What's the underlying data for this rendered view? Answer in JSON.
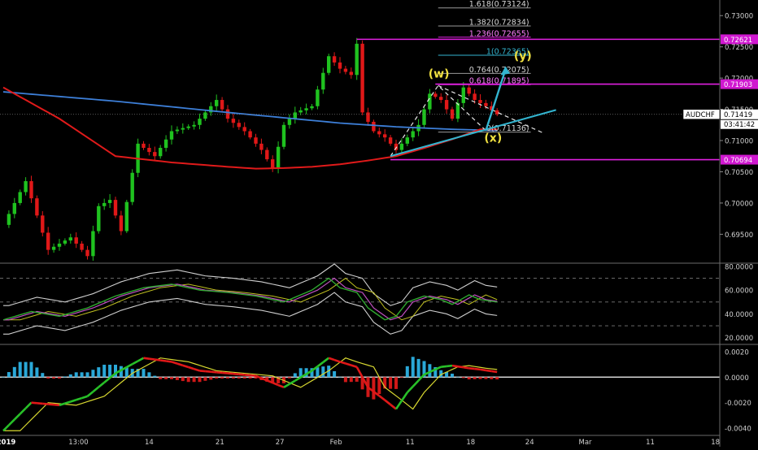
{
  "symbol": "AUDCHF",
  "colors": {
    "background": "#000000",
    "bull": "#1fc21f",
    "bear": "#e01818",
    "ma_slow": "#e01a1a",
    "ma_blue": "#3d7fd8",
    "fib_magenta": "#e020e0",
    "cyan": "#33b5d0",
    "wave_label": "#f0e040",
    "rsi": "#2fa82f",
    "rsi_signal": "#c050c0",
    "rsi_basis": "#c0c020",
    "bands": "#cfcfcf",
    "macd_line": "#28c028",
    "macd_signal": "#d8d830",
    "hist_pos": "#2aa8d8",
    "hist_neg": "#d01818"
  },
  "price_axis": {
    "ticks": [
      "0.73000",
      "0.72500",
      "0.72000",
      "0.71500",
      "0.71000",
      "0.70500",
      "0.70000",
      "0.69500"
    ],
    "tick_values": [
      0.73,
      0.725,
      0.72,
      0.715,
      0.71,
      0.705,
      0.7,
      0.695
    ],
    "last_price": "0.71419",
    "countdown": "03:41:42",
    "tags": [
      {
        "label": "0.72621",
        "value": 0.72621
      },
      {
        "label": "0.71903",
        "value": 0.71903
      },
      {
        "label": "0.70694",
        "value": 0.70694
      }
    ]
  },
  "fib_levels": [
    {
      "label": "1.618(0.73124)",
      "value": 0.73124
    },
    {
      "label": "1.382(0.72834)",
      "value": 0.72834
    },
    {
      "label": "1.236(0.72655)",
      "value": 0.72655
    },
    {
      "label": "1(0.72365)",
      "value": 0.72365
    },
    {
      "label": "0.764(0.72075)",
      "value": 0.72075
    },
    {
      "label": "0.618(0.71895)",
      "value": 0.71895
    },
    {
      "label": "0(0.71136)",
      "value": 0.71136
    }
  ],
  "wave_labels": {
    "w": "(w)",
    "x": "(x)",
    "y": "(y)"
  },
  "time_axis": {
    "labels": [
      "2019",
      "13:00",
      "14",
      "21",
      "27",
      "Feb",
      "11",
      "18",
      "24",
      "Mar",
      "11",
      "18"
    ],
    "x": [
      0.5,
      13.4,
      26,
      38.6,
      49.3,
      59.3,
      72.5,
      83.3,
      93.8,
      103.7,
      115.3,
      126.9
    ]
  },
  "rsi_axis": {
    "ticks": [
      "80.0000",
      "60.0000",
      "40.0000",
      "20.0000"
    ],
    "tick_values": [
      80,
      60,
      40,
      20
    ]
  },
  "macd_axis": {
    "ticks": [
      "0.0020",
      "0.0000",
      "-0.0020",
      "-0.0040"
    ],
    "tick_values": [
      0.002,
      0,
      -0.002,
      -0.004
    ]
  },
  "chart_data": {
    "type": "line",
    "title": "AUDCHF",
    "x_axis": "bar index (time axis labelled 2019 … Mar)",
    "price_ylim": [
      0.6905,
      0.7325
    ],
    "series": [
      {
        "name": "AUDCHF",
        "x": [
          0,
          4,
          8,
          12,
          15,
          17,
          19,
          21,
          24,
          27,
          30,
          34,
          38,
          40,
          43,
          46,
          48,
          50,
          52,
          55,
          58,
          60,
          62,
          63,
          64,
          66,
          68,
          70,
          72,
          74,
          76,
          78,
          80,
          82,
          84,
          86,
          88
        ],
        "values": [
          0.6965,
          0.7035,
          0.6925,
          0.6945,
          0.6915,
          0.6995,
          0.7005,
          0.6955,
          0.7095,
          0.7075,
          0.7115,
          0.7125,
          0.7165,
          0.7135,
          0.7115,
          0.7085,
          0.7055,
          0.7125,
          0.7145,
          0.7155,
          0.7235,
          0.7215,
          0.7205,
          0.7255,
          0.7145,
          0.7115,
          0.7105,
          0.7085,
          0.7105,
          0.7125,
          0.7175,
          0.7165,
          0.7135,
          0.7185,
          0.7165,
          0.7155,
          0.7142
        ]
      },
      {
        "name": "",
        "x": [
          0,
          10,
          20,
          30,
          40,
          45,
          50,
          55,
          60,
          65,
          70,
          75,
          80,
          85
        ],
        "values": [
          0.7185,
          0.7135,
          0.7075,
          0.7065,
          0.7058,
          0.7055,
          0.7056,
          0.7058,
          0.7062,
          0.7068,
          0.7075,
          0.7088,
          0.7102,
          0.7118
        ]
      },
      {
        "name": "",
        "x": [
          0,
          20,
          40,
          60,
          70,
          80,
          88
        ],
        "values": [
          0.7178,
          0.7163,
          0.7145,
          0.7128,
          0.7122,
          0.7118,
          0.7116
        ]
      }
    ],
    "rsi": {
      "ylim": [
        15,
        82
      ],
      "x": [
        0,
        5,
        10,
        15,
        20,
        25,
        30,
        35,
        40,
        45,
        50,
        55,
        58,
        60,
        63,
        65,
        68,
        70,
        72,
        75,
        78,
        80,
        83,
        85,
        88
      ],
      "values": [
        35,
        42,
        38,
        45,
        55,
        62,
        65,
        60,
        58,
        55,
        50,
        60,
        70,
        62,
        58,
        45,
        35,
        38,
        50,
        55,
        52,
        48,
        56,
        52,
        50
      ]
    },
    "macd": {
      "ylim": [
        -0.0045,
        0.0025
      ],
      "x": [
        0,
        5,
        10,
        15,
        20,
        25,
        30,
        35,
        40,
        45,
        50,
        55,
        58,
        60,
        63,
        65,
        68,
        70,
        72,
        75,
        78,
        80,
        83,
        85,
        88
      ],
      "values": [
        -0.0042,
        -0.002,
        -0.0022,
        -0.0015,
        0.0003,
        0.0015,
        0.0012,
        0.0005,
        0.0003,
        0.0001,
        -0.0008,
        0.0005,
        0.0015,
        0.0012,
        0.0008,
        -0.0008,
        -0.0018,
        -0.0025,
        -0.0012,
        0.0002,
        0.0008,
        0.0009,
        0.0007,
        0.0006,
        0.0004
      ]
    }
  }
}
